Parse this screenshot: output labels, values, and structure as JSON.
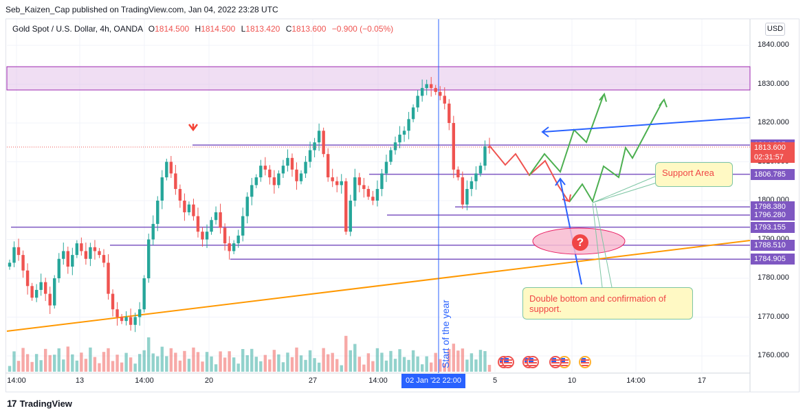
{
  "header": {
    "published": "Seb_Kaizen_Cap published on TradingView.com, Jan 04, 2022 23:28 UTC"
  },
  "legend": {
    "symbol": "Gold Spot / U.S. Dollar, 4h, OANDA",
    "o_label": "O",
    "o": "1814.500",
    "h_label": "H",
    "h": "1814.500",
    "l_label": "L",
    "l": "1813.420",
    "c_label": "C",
    "c": "1813.600",
    "change": "−0.900 (−0.05%)"
  },
  "currency": "USD",
  "footer": {
    "brand": "TradingView",
    "logo": "17"
  },
  "annotations": {
    "support_area": "Support Area",
    "double_bottom": "Double bottom and confirmation of support.",
    "vertical_label": "Start of the year",
    "question_mark": "?"
  },
  "colors": {
    "up": "#26a69a",
    "down": "#ef5350",
    "zone": "#e1bee7",
    "level": "#7e57c2",
    "trend": "#ff9800",
    "blue": "#2962ff"
  },
  "chart_data": {
    "type": "candlestick",
    "title": "Gold Spot / U.S. Dollar, 4h, OANDA",
    "ylim": [
      1754,
      1849
    ],
    "y_ticks": [
      "1840.000",
      "1830.000",
      "1820.000",
      "1810.000",
      "1800.000",
      "1790.000",
      "1780.000",
      "1770.000",
      "1760.000"
    ],
    "x_ticks": [
      "14:00",
      "13",
      "14:00",
      "20",
      "27",
      "14:00",
      "5",
      "10",
      "14:00",
      "17"
    ],
    "x_highlight": "02 Jan '22  22:00",
    "price_tags": [
      {
        "label": "1814.305",
        "value": 1814.305,
        "color": "#7e57c2"
      },
      {
        "label": "1813.600",
        "sub": "02:31:57",
        "value": 1813.6,
        "color": "#ef5350"
      },
      {
        "label": "1806.785",
        "value": 1806.785,
        "color": "#7e57c2"
      },
      {
        "label": "1798.380",
        "value": 1798.38,
        "color": "#7e57c2"
      },
      {
        "label": "1796.280",
        "value": 1796.28,
        "color": "#7e57c2"
      },
      {
        "label": "1793.155",
        "value": 1793.155,
        "color": "#7e57c2"
      },
      {
        "label": "1788.510",
        "value": 1788.51,
        "color": "#7e57c2"
      },
      {
        "label": "1784.905",
        "value": 1784.905,
        "color": "#7e57c2"
      }
    ],
    "resistance_zone": [
      1828.5,
      1834.5
    ],
    "closes": [
      1784,
      1788,
      1786,
      1782,
      1778,
      1775,
      1777,
      1779,
      1776,
      1773,
      1780,
      1785,
      1787,
      1783,
      1786,
      1789,
      1787,
      1785,
      1788,
      1787,
      1786,
      1784,
      1776,
      1772,
      1770,
      1769,
      1770,
      1768,
      1770,
      1772,
      1780,
      1790,
      1794,
      1800,
      1806,
      1810,
      1807,
      1803,
      1800,
      1797,
      1799,
      1796,
      1792,
      1790,
      1792,
      1795,
      1797,
      1793,
      1789,
      1787,
      1789,
      1791,
      1796,
      1801,
      1804,
      1806,
      1809,
      1808,
      1806,
      1804,
      1807,
      1809,
      1811,
      1808,
      1805,
      1807,
      1810,
      1813,
      1815,
      1818,
      1812,
      1806,
      1805,
      1804,
      1805,
      1792,
      1800,
      1806,
      1804,
      1803,
      1801,
      1800,
      1803,
      1807,
      1810,
      1813,
      1815,
      1817,
      1818,
      1821,
      1824,
      1827,
      1829,
      1830,
      1829,
      1828,
      1827,
      1825,
      1820,
      1808,
      1806,
      1799,
      1803,
      1805,
      1807,
      1809,
      1814,
      1813.6
    ]
  }
}
